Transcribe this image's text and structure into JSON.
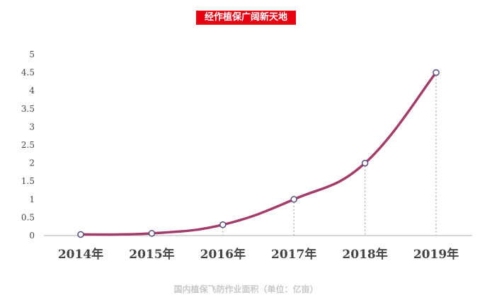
{
  "banner": {
    "text": "经作植保广阔新天地"
  },
  "chart_data": {
    "type": "line",
    "categories": [
      "2014年",
      "2015年",
      "2016年",
      "2017年",
      "2018年",
      "2019年"
    ],
    "values": [
      0.03,
      0.06,
      0.3,
      1.0,
      2.0,
      4.5
    ],
    "ylim": [
      0,
      5
    ],
    "yticks": [
      "0",
      "0.5",
      "1",
      "1.5",
      "2",
      "2.5",
      "3",
      "3.5",
      "4",
      "4.5",
      "5"
    ],
    "xlabel": "国内植保飞防作业面积（单位：亿亩）",
    "grid": false,
    "legend": "none",
    "line_color": "#a23d6b",
    "marker_fill": "#ffffff",
    "marker_stroke": "#5a4a7a",
    "drop_line_color": "#aaaaaa",
    "axis_color": "#cccccc"
  }
}
